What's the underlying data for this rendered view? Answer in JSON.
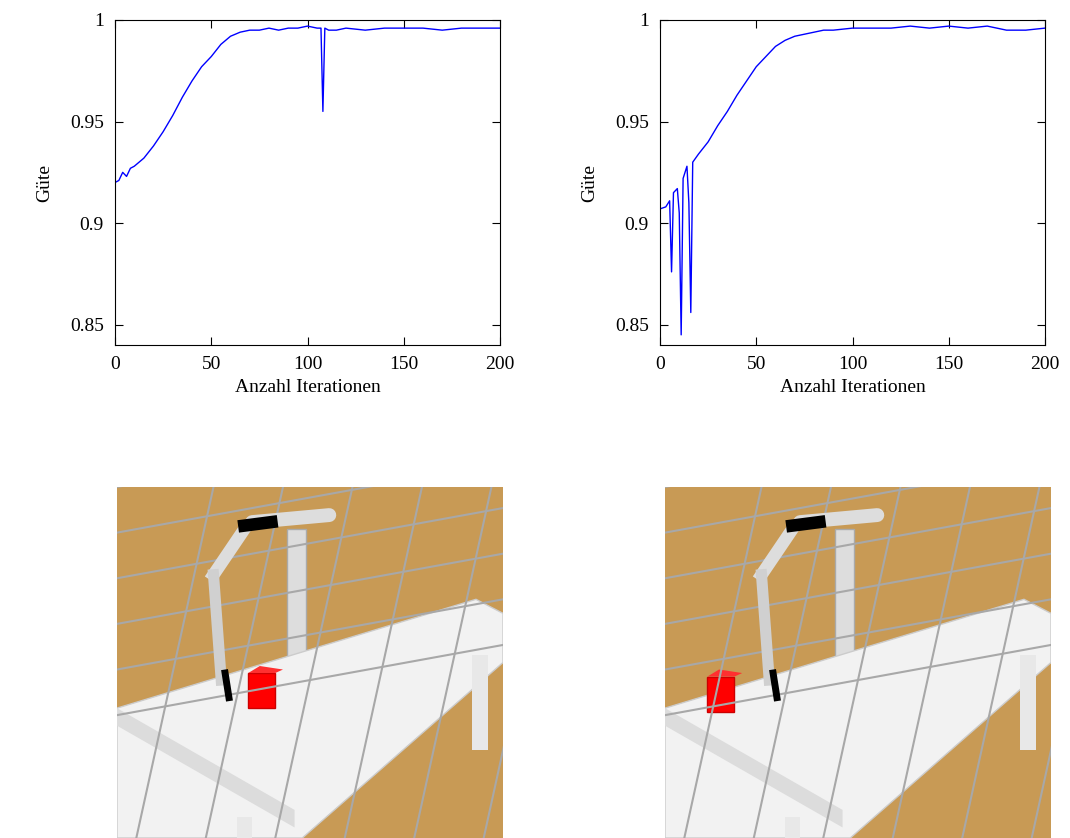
{
  "chart_data": [
    {
      "type": "line",
      "xlabel": "Anzahl Iterationen",
      "ylabel": "Güte",
      "xlim": [
        0,
        200
      ],
      "xticks": [
        0,
        50,
        100,
        150,
        200
      ],
      "ylim": [
        0.84,
        1.0
      ],
      "yticks": [
        0.85,
        0.9,
        0.95,
        1
      ],
      "grid": false,
      "color": "#0000ff",
      "x": [
        0,
        2,
        4,
        6,
        8,
        10,
        15,
        20,
        25,
        30,
        35,
        40,
        45,
        50,
        55,
        60,
        65,
        70,
        75,
        80,
        85,
        90,
        95,
        100,
        105,
        107,
        108,
        109,
        111,
        115,
        120,
        130,
        140,
        150,
        160,
        170,
        180,
        190,
        200
      ],
      "values": [
        0.92,
        0.921,
        0.925,
        0.923,
        0.927,
        0.928,
        0.932,
        0.938,
        0.945,
        0.953,
        0.962,
        0.97,
        0.977,
        0.982,
        0.988,
        0.992,
        0.994,
        0.995,
        0.995,
        0.996,
        0.995,
        0.996,
        0.996,
        0.997,
        0.996,
        0.996,
        0.955,
        0.996,
        0.995,
        0.995,
        0.996,
        0.995,
        0.996,
        0.996,
        0.996,
        0.995,
        0.996,
        0.996,
        0.996
      ]
    },
    {
      "type": "line",
      "xlabel": "Anzahl Iterationen",
      "ylabel": "Güte",
      "xlim": [
        0,
        200
      ],
      "xticks": [
        0,
        50,
        100,
        150,
        200
      ],
      "ylim": [
        0.84,
        1.0
      ],
      "yticks": [
        0.85,
        0.9,
        0.95,
        1
      ],
      "grid": false,
      "color": "#0000ff",
      "x": [
        0,
        3,
        5,
        6,
        7,
        9,
        10,
        11,
        12,
        14,
        15,
        16,
        17,
        20,
        25,
        30,
        35,
        40,
        45,
        50,
        55,
        60,
        65,
        70,
        75,
        80,
        85,
        90,
        100,
        110,
        120,
        130,
        140,
        150,
        160,
        170,
        180,
        190,
        200
      ],
      "values": [
        0.907,
        0.908,
        0.911,
        0.876,
        0.915,
        0.917,
        0.905,
        0.845,
        0.922,
        0.928,
        0.91,
        0.856,
        0.93,
        0.934,
        0.94,
        0.948,
        0.955,
        0.963,
        0.97,
        0.977,
        0.982,
        0.987,
        0.99,
        0.992,
        0.993,
        0.994,
        0.995,
        0.995,
        0.996,
        0.996,
        0.996,
        0.997,
        0.996,
        0.997,
        0.996,
        0.997,
        0.995,
        0.995,
        0.996
      ]
    }
  ]
}
